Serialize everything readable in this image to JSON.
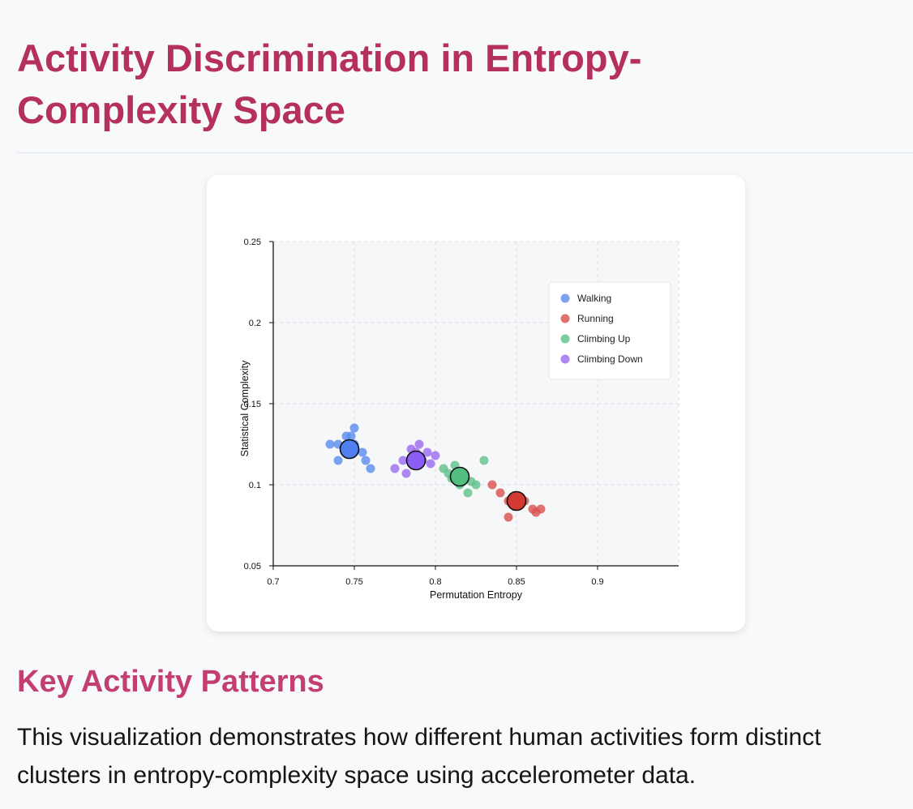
{
  "page": {
    "title": "Activity Discrimination in Entropy-Complexity Space",
    "section_heading": "Key Activity Patterns",
    "description": "This visualization demonstrates how different human activities form distinct clusters in entropy-complexity space using accelerometer data."
  },
  "colors": {
    "title": "#b52f5f",
    "heading": "#c23f6f"
  },
  "chart_data": {
    "type": "scatter",
    "title": "",
    "xlabel": "Permutation Entropy",
    "ylabel": "Statistical Complexity",
    "xlim": [
      0.7,
      0.95
    ],
    "ylim": [
      0.05,
      0.25
    ],
    "x_ticks": [
      0.7,
      0.75,
      0.8,
      0.85,
      0.9
    ],
    "x_tick_labels": [
      "0.7",
      "0.75",
      "0.8",
      "0.85",
      "0.9"
    ],
    "y_ticks": [
      0.05,
      0.1,
      0.15,
      0.2,
      0.25
    ],
    "y_tick_labels": [
      "0.05",
      "0.1",
      "0.15",
      "0.2",
      "0.25"
    ],
    "grid": true,
    "legend_position": "top-right",
    "series": [
      {
        "name": "Walking",
        "color": "#5b8def",
        "centroid_color": "#4f7ff0",
        "centroid": [
          0.747,
          0.122
        ],
        "points": [
          [
            0.735,
            0.125
          ],
          [
            0.74,
            0.125
          ],
          [
            0.745,
            0.13
          ],
          [
            0.748,
            0.13
          ],
          [
            0.75,
            0.135
          ],
          [
            0.74,
            0.115
          ],
          [
            0.755,
            0.12
          ],
          [
            0.757,
            0.115
          ],
          [
            0.76,
            0.11
          ],
          [
            0.75,
            0.125
          ]
        ]
      },
      {
        "name": "Running",
        "color": "#d9534f",
        "centroid_color": "#d23a32",
        "centroid": [
          0.85,
          0.09
        ],
        "points": [
          [
            0.835,
            0.1
          ],
          [
            0.84,
            0.095
          ],
          [
            0.845,
            0.09
          ],
          [
            0.848,
            0.088
          ],
          [
            0.852,
            0.092
          ],
          [
            0.855,
            0.09
          ],
          [
            0.86,
            0.085
          ],
          [
            0.862,
            0.083
          ],
          [
            0.865,
            0.085
          ],
          [
            0.845,
            0.08
          ]
        ]
      },
      {
        "name": "Climbing Up",
        "color": "#5fc28a",
        "centroid_color": "#52be80",
        "centroid": [
          0.815,
          0.105
        ],
        "points": [
          [
            0.805,
            0.11
          ],
          [
            0.808,
            0.107
          ],
          [
            0.812,
            0.112
          ],
          [
            0.818,
            0.105
          ],
          [
            0.82,
            0.095
          ],
          [
            0.822,
            0.102
          ],
          [
            0.825,
            0.1
          ],
          [
            0.83,
            0.115
          ],
          [
            0.815,
            0.1
          ],
          [
            0.81,
            0.104
          ]
        ]
      },
      {
        "name": "Climbing Down",
        "color": "#9b6ef2",
        "centroid_color": "#8b5cf6",
        "centroid": [
          0.788,
          0.115
        ],
        "points": [
          [
            0.775,
            0.11
          ],
          [
            0.78,
            0.115
          ],
          [
            0.782,
            0.107
          ],
          [
            0.785,
            0.122
          ],
          [
            0.79,
            0.125
          ],
          [
            0.795,
            0.12
          ],
          [
            0.797,
            0.113
          ],
          [
            0.8,
            0.118
          ],
          [
            0.788,
            0.12
          ],
          [
            0.792,
            0.115
          ]
        ]
      }
    ]
  }
}
